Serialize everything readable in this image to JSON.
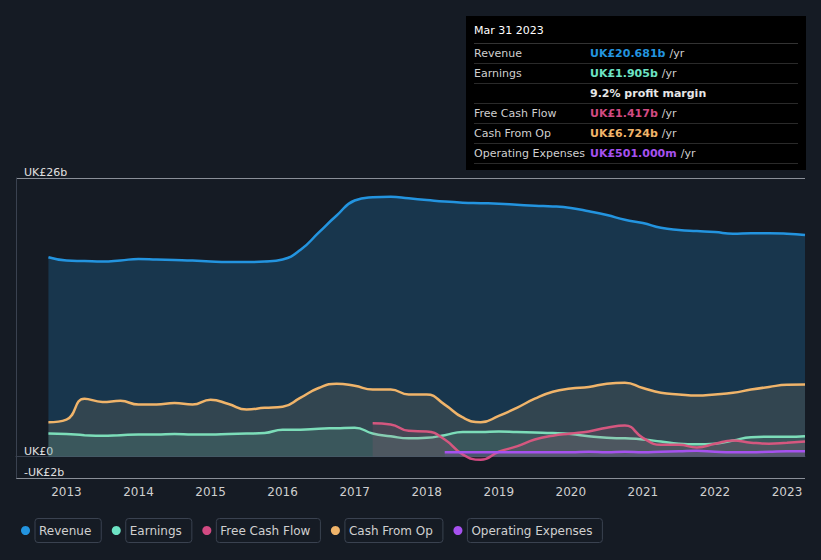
{
  "chart_data": {
    "type": "line",
    "x": [
      2012.75,
      2013,
      2013.25,
      2013.5,
      2013.75,
      2014,
      2014.25,
      2014.5,
      2014.75,
      2015,
      2015.25,
      2015.5,
      2015.75,
      2016,
      2016.25,
      2016.5,
      2016.75,
      2017,
      2017.25,
      2017.5,
      2017.75,
      2018,
      2018.25,
      2018.5,
      2018.75,
      2019,
      2019.25,
      2019.5,
      2019.75,
      2020,
      2020.25,
      2020.5,
      2020.75,
      2021,
      2021.25,
      2021.5,
      2021.75,
      2022,
      2022.25,
      2022.5,
      2022.75,
      2023,
      2023.25
    ],
    "series": [
      {
        "name": "Revenue",
        "color": "#2394df",
        "values": [
          18.6,
          18.3,
          18.25,
          18.2,
          18.3,
          18.45,
          18.4,
          18.35,
          18.3,
          18.2,
          18.15,
          18.15,
          18.2,
          18.4,
          19.3,
          20.9,
          22.5,
          23.9,
          24.2,
          24.25,
          24.1,
          23.95,
          23.8,
          23.7,
          23.65,
          23.6,
          23.5,
          23.4,
          23.35,
          23.2,
          22.9,
          22.55,
          22.1,
          21.8,
          21.35,
          21.15,
          21.05,
          20.95,
          20.8,
          20.85,
          20.85,
          20.8,
          20.681
        ]
      },
      {
        "name": "Earnings",
        "color": "#6de3c4",
        "values": [
          2.15,
          2.1,
          2.0,
          1.95,
          2.0,
          2.05,
          2.05,
          2.1,
          2.05,
          2.05,
          2.1,
          2.15,
          2.2,
          2.5,
          2.5,
          2.6,
          2.65,
          2.7,
          2.15,
          1.9,
          1.7,
          1.75,
          2.0,
          2.3,
          2.3,
          2.35,
          2.3,
          2.25,
          2.2,
          2.1,
          1.9,
          1.75,
          1.7,
          1.6,
          1.4,
          1.2,
          1.15,
          1.2,
          1.5,
          1.8,
          1.85,
          1.85,
          1.905
        ]
      },
      {
        "name": "Free Cash Flow",
        "color": "#d24a82",
        "values": [
          null,
          null,
          null,
          null,
          null,
          null,
          null,
          null,
          null,
          null,
          null,
          null,
          null,
          null,
          null,
          null,
          null,
          null,
          3.1,
          3.0,
          2.4,
          2.35,
          1.6,
          0.2,
          -0.3,
          0.45,
          0.95,
          1.6,
          1.95,
          2.15,
          2.35,
          2.7,
          2.9,
          1.75,
          1.1,
          1.1,
          0.85,
          1.2,
          1.5,
          1.3,
          1.2,
          1.3,
          1.417
        ]
      },
      {
        "name": "Cash From Op",
        "color": "#f0b46a",
        "values": [
          3.2,
          3.45,
          5.4,
          5.1,
          5.2,
          4.85,
          4.85,
          5.0,
          4.85,
          5.3,
          4.9,
          4.4,
          4.55,
          4.65,
          5.5,
          6.4,
          6.8,
          6.6,
          6.25,
          6.25,
          5.8,
          5.8,
          4.85,
          3.65,
          3.2,
          3.8,
          4.55,
          5.4,
          6.05,
          6.35,
          6.5,
          6.8,
          6.9,
          6.4,
          5.95,
          5.8,
          5.7,
          5.8,
          5.95,
          6.25,
          6.5,
          6.7,
          6.724
        ]
      },
      {
        "name": "Operating Expenses",
        "color": "#a651ef",
        "values": [
          null,
          null,
          null,
          null,
          null,
          null,
          null,
          null,
          null,
          null,
          null,
          null,
          null,
          null,
          null,
          null,
          null,
          null,
          null,
          null,
          null,
          null,
          0.4,
          0.4,
          0.4,
          0.4,
          0.4,
          0.4,
          0.4,
          0.4,
          0.45,
          0.4,
          0.45,
          0.4,
          0.45,
          0.5,
          0.55,
          0.45,
          0.4,
          0.4,
          0.45,
          0.5,
          0.501
        ]
      }
    ],
    "xlim": [
      2012.3,
      2023.25
    ],
    "xticks": [
      2013,
      2014,
      2015,
      2016,
      2017,
      2018,
      2019,
      2020,
      2021,
      2022,
      2023
    ],
    "ylim": [
      -2,
      26
    ],
    "yticks": [
      {
        "value": -2,
        "label": "-UK£2b"
      },
      {
        "value": 0,
        "label": "UK£0"
      },
      {
        "value": 26,
        "label": "UK£26b"
      }
    ],
    "grid": true,
    "legend": "bottom-left",
    "annotations": {
      "date": "Mar 31 2023",
      "rows": [
        {
          "label": "Revenue",
          "amount": "UK£20.681b",
          "unit": "/yr",
          "color": "#2394df"
        },
        {
          "label": "Earnings",
          "amount": "UK£1.905b",
          "unit": "/yr",
          "color": "#6de3c4"
        },
        {
          "amount": "9.2% profit margin",
          "color": "#e6e6e6"
        },
        {
          "label": "Free Cash Flow",
          "amount": "UK£1.417b",
          "unit": "/yr",
          "color": "#d24a82"
        },
        {
          "label": "Cash From Op",
          "amount": "UK£6.724b",
          "unit": "/yr",
          "color": "#f0b46a"
        },
        {
          "label": "Operating Expenses",
          "amount": "UK£501.000m",
          "unit": "/yr",
          "color": "#a651ef"
        }
      ]
    }
  }
}
